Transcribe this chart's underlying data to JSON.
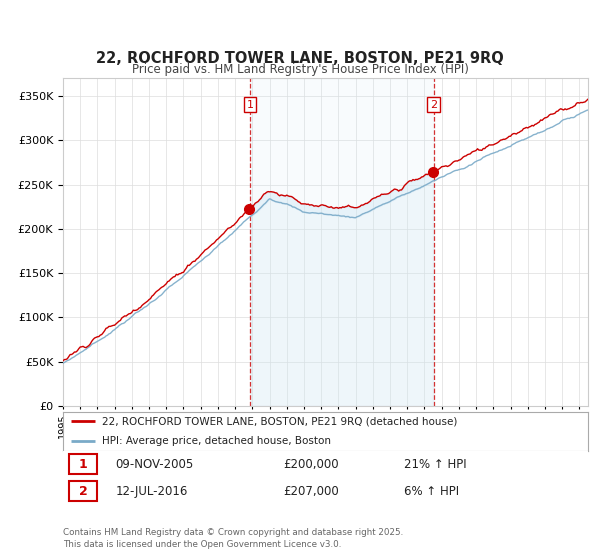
{
  "title": "22, ROCHFORD TOWER LANE, BOSTON, PE21 9RQ",
  "subtitle": "Price paid vs. HM Land Registry's House Price Index (HPI)",
  "ylim": [
    0,
    370000
  ],
  "xlim_start": 1995.0,
  "xlim_end": 2025.5,
  "sale1_date": 2005.86,
  "sale1_price": 200000,
  "sale2_date": 2016.53,
  "sale2_price": 207000,
  "red_color": "#cc0000",
  "blue_color": "#7aaac8",
  "shade_color": "#d0e8f5",
  "legend_label_red": "22, ROCHFORD TOWER LANE, BOSTON, PE21 9RQ (detached house)",
  "legend_label_blue": "HPI: Average price, detached house, Boston",
  "footnote": "Contains HM Land Registry data © Crown copyright and database right 2025.\nThis data is licensed under the Open Government Licence v3.0.",
  "background_color": "#ffffff",
  "grid_color": "#dddddd"
}
